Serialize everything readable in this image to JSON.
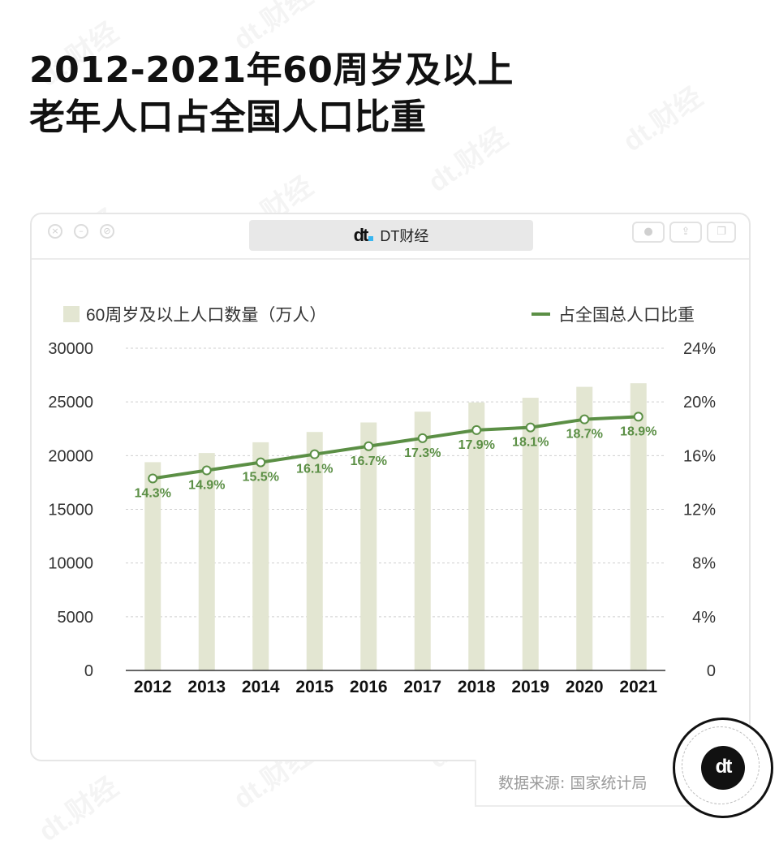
{
  "title_line1": "2012-2021年60周岁及以上",
  "title_line2": "老年人口占全国人口比重",
  "window": {
    "tab_label": "DT财经",
    "logo_text": "dt"
  },
  "source": "数据来源: 国家统计局",
  "badge_text": "dt",
  "watermark": "dt.财经",
  "colors": {
    "bar": "#e3e6d2",
    "line": "#5b8f45",
    "label": "#5b8f45"
  },
  "chart_data": {
    "type": "bar",
    "categories": [
      "2012",
      "2013",
      "2014",
      "2015",
      "2016",
      "2017",
      "2018",
      "2019",
      "2020",
      "2021"
    ],
    "series": [
      {
        "name": "60周岁及以上人口数量（万人）",
        "type": "bar",
        "axis": "left",
        "values": [
          19390,
          20243,
          21242,
          22200,
          23086,
          24090,
          24949,
          25388,
          26402,
          26736
        ]
      },
      {
        "name": "占全国总人口比重",
        "type": "line",
        "axis": "right",
        "values": [
          14.3,
          14.9,
          15.5,
          16.1,
          16.7,
          17.3,
          17.9,
          18.1,
          18.7,
          18.9
        ],
        "labels": [
          "14.3%",
          "14.9%",
          "15.5%",
          "16.1%",
          "16.7%",
          "17.3%",
          "17.9%",
          "18.1%",
          "18.7%",
          "18.9%"
        ]
      }
    ],
    "y_left": {
      "ylim": [
        0,
        30000
      ],
      "ticks": [
        "0",
        "5000",
        "10000",
        "15000",
        "20000",
        "25000",
        "30000"
      ]
    },
    "y_right": {
      "ylim": [
        0,
        24
      ],
      "ticks": [
        "0",
        "4%",
        "8%",
        "12%",
        "16%",
        "20%",
        "24%"
      ]
    },
    "grid": true,
    "legend": "top"
  }
}
